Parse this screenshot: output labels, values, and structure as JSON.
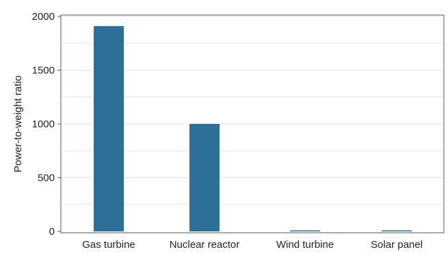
{
  "chart_data": {
    "type": "bar",
    "categories": [
      "Gas turbine",
      "Nuclear reactor",
      "Wind turbine",
      "Solar panel"
    ],
    "values": [
      1910,
      1000,
      5,
      5
    ],
    "xlabel": "",
    "ylabel": "Power-to-weight ratio",
    "ylim": [
      0,
      2000
    ],
    "yticks": [
      0,
      500,
      1000,
      1500,
      2000
    ],
    "ytick_labels": [
      "0",
      "500",
      "1000",
      "1500",
      "2000"
    ],
    "grid": true,
    "colors": {
      "bar": "#2e6f9a",
      "grid": "#e3e3e3",
      "axis": "#555555"
    }
  }
}
